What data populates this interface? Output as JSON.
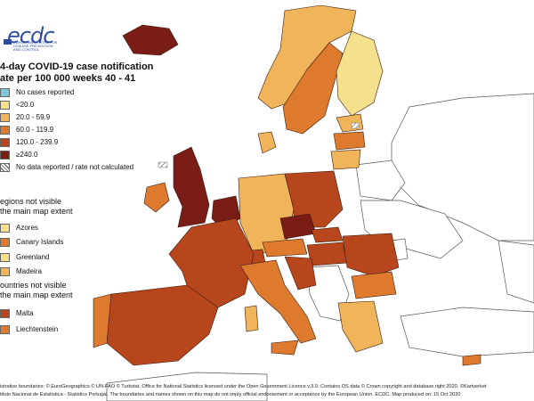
{
  "logo": {
    "text": "ecdc",
    "subtitle": "EUROPEAN CENTRE FOR DISEASE PREVENTION AND CONTROL"
  },
  "title": {
    "line1": "4-day COVID-19 case notification",
    "line2": "ate per 100 000 weeks 40 - 41"
  },
  "legend": {
    "items": [
      {
        "label": "No cases reported",
        "color": "#7ec8d6"
      },
      {
        "label": "<20.0",
        "color": "#f5e08c"
      },
      {
        "label": "20.0 - 59.9",
        "color": "#f0b45a"
      },
      {
        "label": "60.0 - 119.9",
        "color": "#dd7a2e"
      },
      {
        "label": "120.0 - 239.9",
        "color": "#b8461c"
      },
      {
        "label": "≥240.0",
        "color": "#7a1d17"
      },
      {
        "label": "No data reported / rate not calculated",
        "color": "hatch"
      }
    ]
  },
  "regions_section": {
    "line1": "egions not visible",
    "line2": "the main map extent",
    "items": [
      {
        "label": "Azores",
        "color": "#f5e08c"
      },
      {
        "label": "Canary Islands",
        "color": "#dd7a2e"
      },
      {
        "label": "Greenland",
        "color": "#f5e08c"
      },
      {
        "label": "Madeira",
        "color": "#f0b45a"
      }
    ]
  },
  "countries_section": {
    "line1": "ountries not visible",
    "line2": "the main map extent",
    "items": [
      {
        "label": "Malta",
        "color": "#b8461c"
      },
      {
        "label": "Liechtenstein",
        "color": "#dd7a2e"
      }
    ]
  },
  "footer": {
    "line1": "istrative boundaries: © EuroGeographics © UN-FAO © Turkstat. Office for National Statistics licensed under the Open Government Licence v.3.0. Contains OS data © Crown copyright and database right 2020. ©Kartverket",
    "line2": "tituto Nacional de Estatística - Statistics Portugal. The boundaries and names shown on this map do not imply official endorsement or acceptance by the European Union. ECDC. Map produced on: 15 Oct 2020"
  },
  "map": {
    "colors": {
      "background": "#ffffff",
      "non_eu": "#ffffff",
      "border": "#555555",
      "sea": "#ffffff"
    }
  }
}
